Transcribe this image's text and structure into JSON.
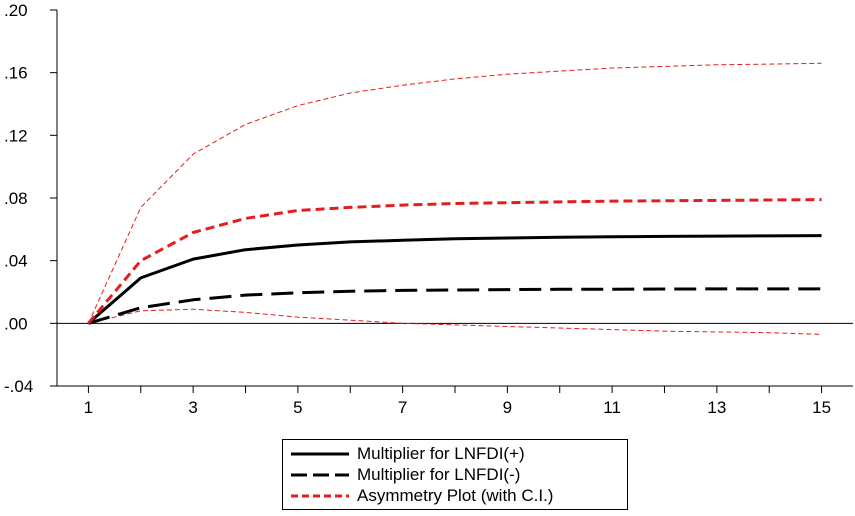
{
  "chart_data": {
    "type": "line",
    "x": [
      1,
      2,
      3,
      4,
      5,
      6,
      7,
      8,
      9,
      10,
      11,
      12,
      13,
      14,
      15
    ],
    "x_tick_labels": [
      "1",
      "3",
      "5",
      "7",
      "9",
      "11",
      "13",
      "15"
    ],
    "y_tick_labels": [
      ".20",
      ".16",
      ".12",
      ".08",
      ".04",
      ".00",
      "-.04"
    ],
    "xlim": [
      0.4,
      15.6
    ],
    "ylim": [
      -0.04,
      0.2
    ],
    "series": [
      {
        "name": "Multiplier for LNFDI(+)",
        "color": "#000000",
        "style": "solid",
        "values": [
          0.0,
          0.029,
          0.041,
          0.047,
          0.05,
          0.052,
          0.053,
          0.054,
          0.0545,
          0.055,
          0.0553,
          0.0555,
          0.0557,
          0.0558,
          0.056
        ]
      },
      {
        "name": "Multiplier for LNFDI(-)",
        "color": "#000000",
        "style": "dashed",
        "values": [
          0.0,
          0.01,
          0.015,
          0.018,
          0.0195,
          0.0205,
          0.021,
          0.0213,
          0.0215,
          0.0217,
          0.0218,
          0.0219,
          0.022,
          0.022,
          0.022
        ]
      },
      {
        "name": "Asymmetry Plot (with C.I.)",
        "color": "#e41e1e",
        "style": "dashed",
        "values": [
          0.0,
          0.04,
          0.058,
          0.067,
          0.072,
          0.074,
          0.0755,
          0.0765,
          0.077,
          0.0775,
          0.078,
          0.0782,
          0.0785,
          0.0787,
          0.079
        ]
      },
      {
        "color": "#e41e1e",
        "style": "thin-dashed",
        "values": [
          0.0,
          0.074,
          0.108,
          0.127,
          0.139,
          0.147,
          0.152,
          0.156,
          0.159,
          0.161,
          0.163,
          0.164,
          0.165,
          0.1655,
          0.166
        ]
      },
      {
        "color": "#e41e1e",
        "style": "thin-dashed",
        "values": [
          0.0,
          0.008,
          0.009,
          0.007,
          0.004,
          0.002,
          0.0,
          -0.001,
          -0.002,
          -0.003,
          -0.004,
          -0.005,
          -0.0055,
          -0.006,
          -0.007
        ]
      }
    ],
    "legend_position": "bottom-center",
    "grid": false,
    "zero_line": true
  },
  "legend": {
    "items": [
      {
        "label": "Multiplier for LNFDI(+)"
      },
      {
        "label": "Multiplier for LNFDI(-)"
      },
      {
        "label": "Asymmetry Plot (with C.I.)"
      }
    ]
  }
}
